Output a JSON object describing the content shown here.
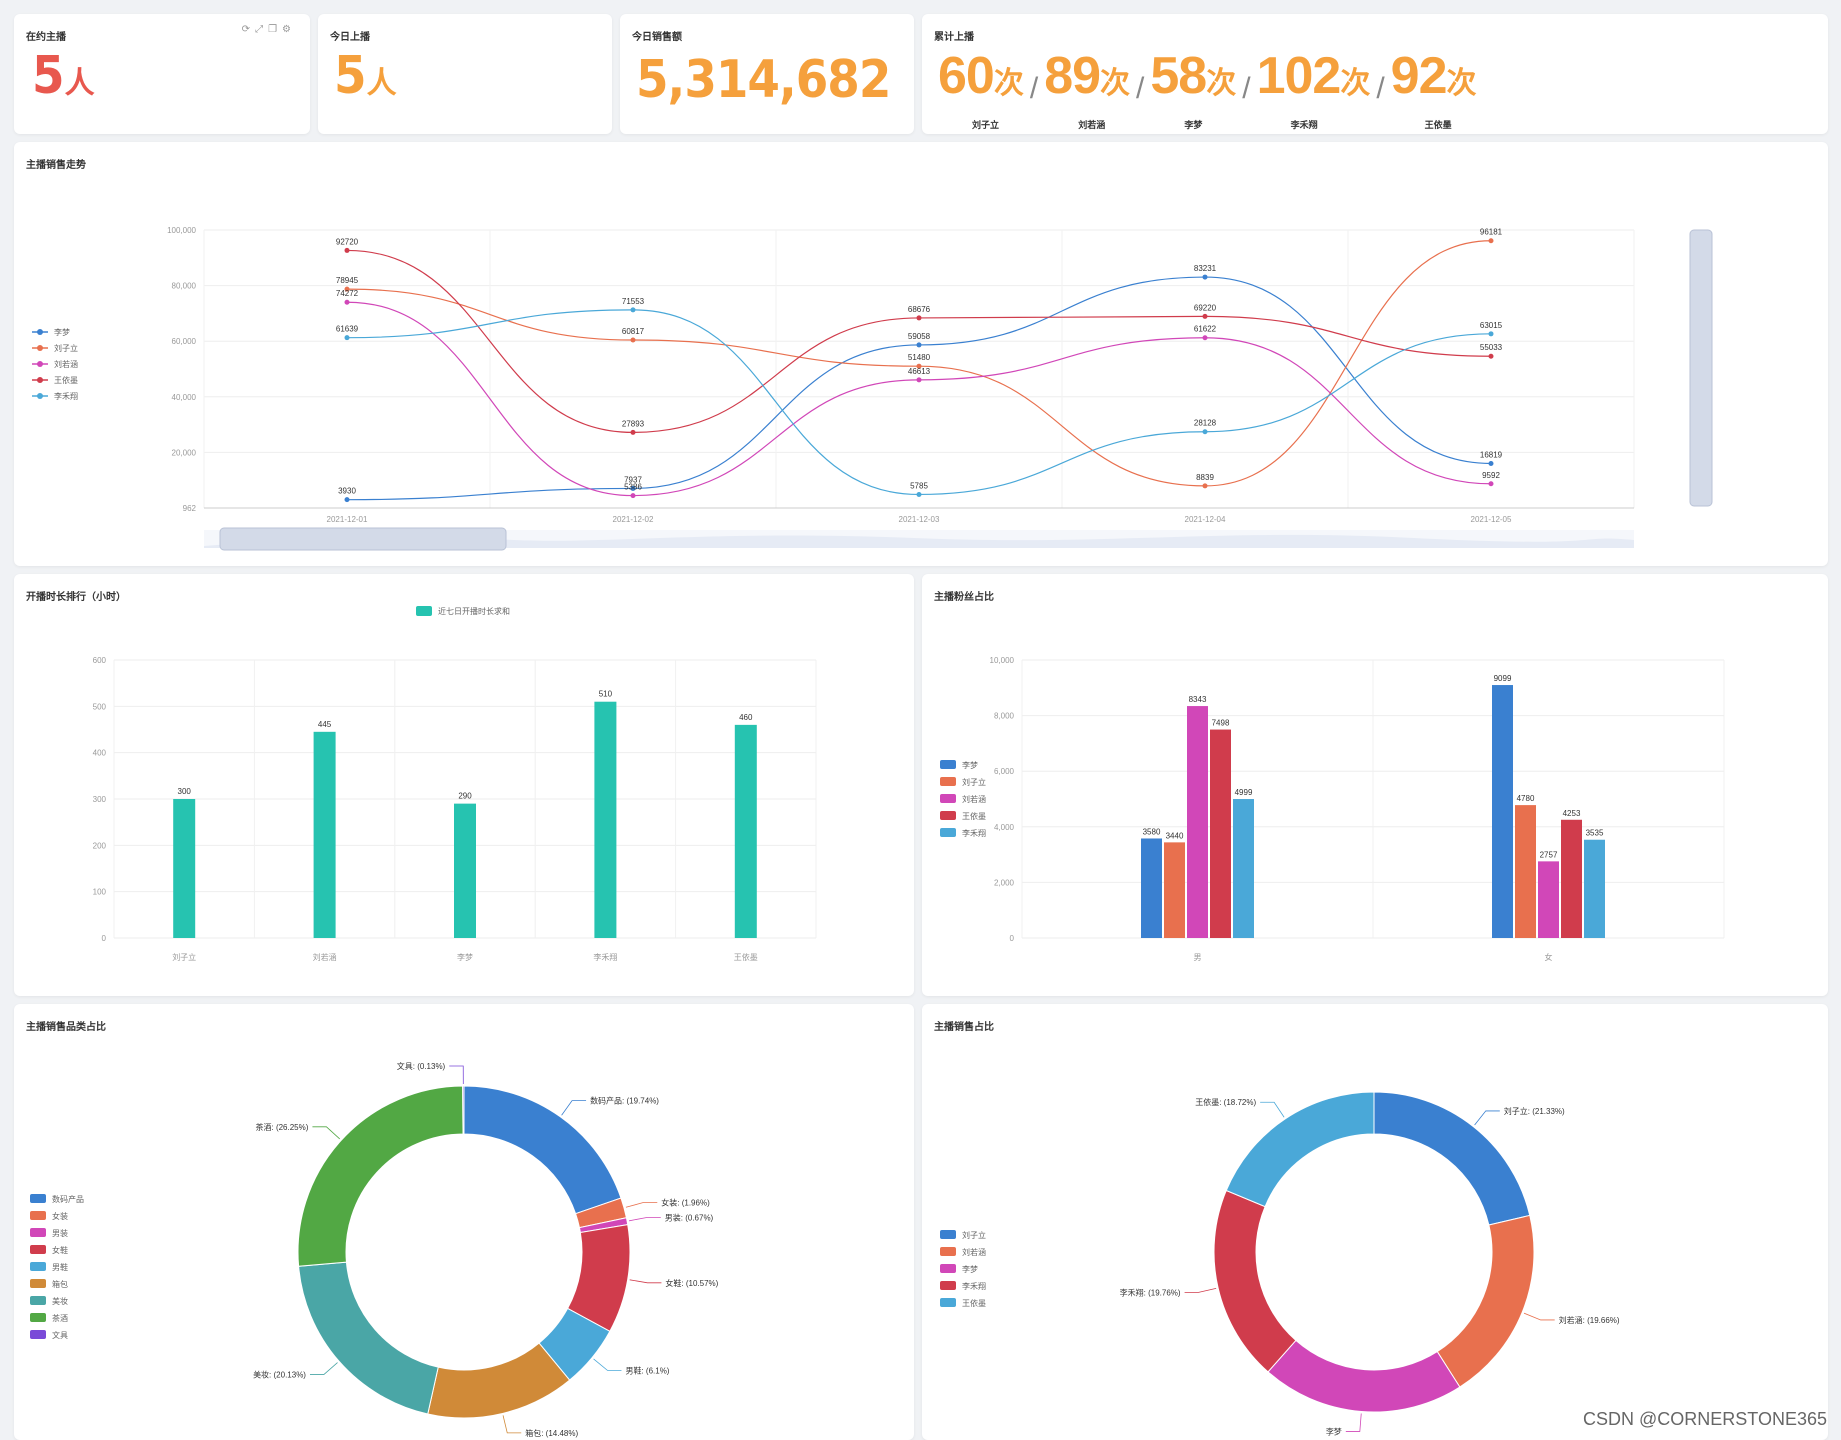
{
  "stats": {
    "online": {
      "title": "在约主播",
      "value": "5",
      "unit": "人"
    },
    "today": {
      "title": "今日上播",
      "value": "5",
      "unit": "人"
    },
    "sales": {
      "title": "今日销售额",
      "value": "5,314,682"
    },
    "cumulative": {
      "title": "累计上播",
      "unit": "次",
      "items": [
        {
          "value": "60",
          "name": "刘子立"
        },
        {
          "value": "89",
          "name": "刘若涵"
        },
        {
          "value": "58",
          "name": "李梦"
        },
        {
          "value": "102",
          "name": "李禾翔"
        },
        {
          "value": "92",
          "name": "王依墨"
        }
      ]
    }
  },
  "colors": {
    "blue": "#3a80d0",
    "orange": "#e8704e",
    "magenta": "#d147b8",
    "red": "#d03c4c",
    "lightblue": "#4aa8d8",
    "teal": "#26c3b0",
    "brown": "#d08a38",
    "cyan": "#4aa6a6",
    "green": "#52a844",
    "purple": "#7a4ad8"
  },
  "chart_data": [
    {
      "id": "trend",
      "type": "line",
      "title": "主播销售走势",
      "x": [
        "2021-12-01",
        "2021-12-02",
        "2021-12-03",
        "2021-12-04",
        "2021-12-05"
      ],
      "yticks": [
        "100,000",
        "80,000",
        "60,000",
        "40,000",
        "20,000",
        "962"
      ],
      "ylim": [
        962,
        100000
      ],
      "series": [
        {
          "name": "李梦",
          "color": "#3a80d0",
          "values": [
            3930,
            7937,
            59058,
            83231,
            16819
          ]
        },
        {
          "name": "刘子立",
          "color": "#e8704e",
          "values": [
            78945,
            60817,
            51480,
            8839,
            96181
          ]
        },
        {
          "name": "刘若涵",
          "color": "#d147b8",
          "values": [
            74272,
            5386,
            46613,
            61622,
            9592
          ]
        },
        {
          "name": "王依墨",
          "color": "#d03c4c",
          "values": [
            92720,
            27893,
            68676,
            69220,
            55033
          ]
        },
        {
          "name": "李禾翔",
          "color": "#4aa8d8",
          "values": [
            61639,
            71553,
            5785,
            28128,
            63015
          ]
        }
      ]
    },
    {
      "id": "duration",
      "type": "bar",
      "title": "开播时长排行（小时）",
      "legend": "近七日开播时长求和",
      "categories": [
        "刘子立",
        "刘若涵",
        "李梦",
        "李禾翔",
        "王依墨"
      ],
      "values": [
        300,
        445,
        290,
        510,
        460
      ],
      "yticks": [
        "600",
        "500",
        "400",
        "300",
        "200",
        "100",
        "0"
      ],
      "ylim": [
        0,
        600
      ]
    },
    {
      "id": "fans",
      "type": "bar",
      "title": "主播粉丝占比",
      "categories": [
        "男",
        "女"
      ],
      "yticks": [
        "10,000",
        "8,000",
        "6,000",
        "4,000",
        "2,000",
        "0"
      ],
      "ylim": [
        0,
        10000
      ],
      "series": [
        {
          "name": "李梦",
          "color": "#3a80d0",
          "values": [
            3580,
            9099
          ]
        },
        {
          "name": "刘子立",
          "color": "#e8704e",
          "values": [
            3440,
            4780
          ]
        },
        {
          "name": "刘若涵",
          "color": "#d147b8",
          "values": [
            8343,
            2757
          ]
        },
        {
          "name": "王依墨",
          "color": "#d03c4c",
          "values": [
            7498,
            4253
          ]
        },
        {
          "name": "李禾翔",
          "color": "#4aa8d8",
          "values": [
            4999,
            3535
          ]
        }
      ]
    },
    {
      "id": "category",
      "type": "pie",
      "title": "主播销售品类占比",
      "slices": [
        {
          "name": "数码产品",
          "label": "数码产品: (19.74%)",
          "value": 19.74,
          "color": "#3a80d0"
        },
        {
          "name": "女装",
          "label": "女装: (1.96%)",
          "value": 1.96,
          "color": "#e8704e"
        },
        {
          "name": "男装",
          "label": "男装: (0.67%)",
          "value": 0.67,
          "color": "#d147b8"
        },
        {
          "name": "女鞋",
          "label": "女鞋: (10.57%)",
          "value": 10.57,
          "color": "#d03c4c"
        },
        {
          "name": "男鞋",
          "label": "男鞋: (6.1%)",
          "value": 6.1,
          "color": "#4aa8d8"
        },
        {
          "name": "箱包",
          "label": "箱包: (14.48%)",
          "value": 14.48,
          "color": "#d08a38"
        },
        {
          "name": "美妆",
          "label": "美妆: (20.13%)",
          "value": 20.13,
          "color": "#4aa6a6"
        },
        {
          "name": "茶酒",
          "label": "茶酒: (26.25%)",
          "value": 26.25,
          "color": "#52a844"
        },
        {
          "name": "文具",
          "label": "文具: (0.13%)",
          "value": 0.13,
          "color": "#7a4ad8"
        }
      ]
    },
    {
      "id": "salesShare",
      "type": "pie",
      "title": "主播销售占比",
      "slices": [
        {
          "name": "刘子立",
          "label": "刘子立: (21.33%)",
          "value": 21.33,
          "color": "#3a80d0"
        },
        {
          "name": "刘若涵",
          "label": "刘若涵: (19.66%)",
          "value": 19.66,
          "color": "#e8704e"
        },
        {
          "name": "李梦",
          "label": "李梦",
          "value": 20.53,
          "color": "#d147b8"
        },
        {
          "name": "李禾翔",
          "label": "李禾翔: (19.76%)",
          "value": 19.76,
          "color": "#d03c4c"
        },
        {
          "name": "王依墨",
          "label": "王依墨: (18.72%)",
          "value": 18.72,
          "color": "#4aa8d8"
        }
      ]
    }
  ],
  "watermark": "CSDN @CORNERSTONE365"
}
